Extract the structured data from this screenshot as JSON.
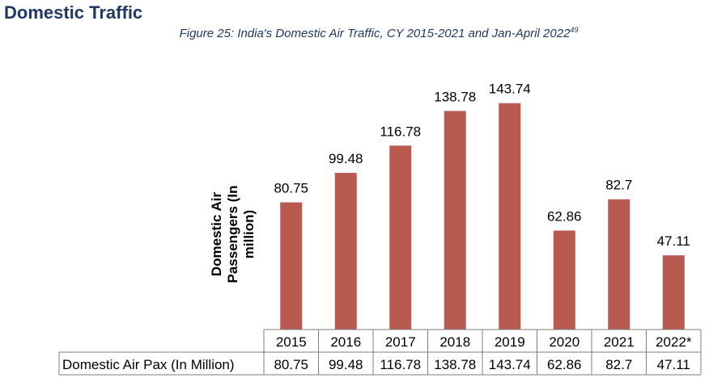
{
  "heading": "Domestic Traffic",
  "caption": {
    "text": "Figure 25: India's Domestic Air Traffic, CY 2015-2021 and Jan-April 2022",
    "superscript": "49"
  },
  "colors": {
    "bar": "#b85a50",
    "heading": "#1f3864",
    "grid": "#7f7f7f"
  },
  "chart_data": {
    "type": "bar",
    "categories": [
      "2015",
      "2016",
      "2017",
      "2018",
      "2019",
      "2020",
      "2021",
      "2022*"
    ],
    "values": [
      80.75,
      99.48,
      116.78,
      138.78,
      143.74,
      62.86,
      82.7,
      47.11
    ],
    "value_labels": [
      "80.75",
      "99.48",
      "116.78",
      "138.78",
      "143.74",
      "62.86",
      "82.7",
      "47.11"
    ],
    "ylabel": "Domestic Air Passengers (In million)",
    "ylim": [
      0,
      160
    ],
    "grid": false,
    "data_table": {
      "row_label": "Domestic Air Pax (In Million)",
      "values": [
        "80.75",
        "99.48",
        "116.78",
        "138.78",
        "143.74",
        "62.86",
        "82.7",
        "47.11"
      ]
    }
  }
}
